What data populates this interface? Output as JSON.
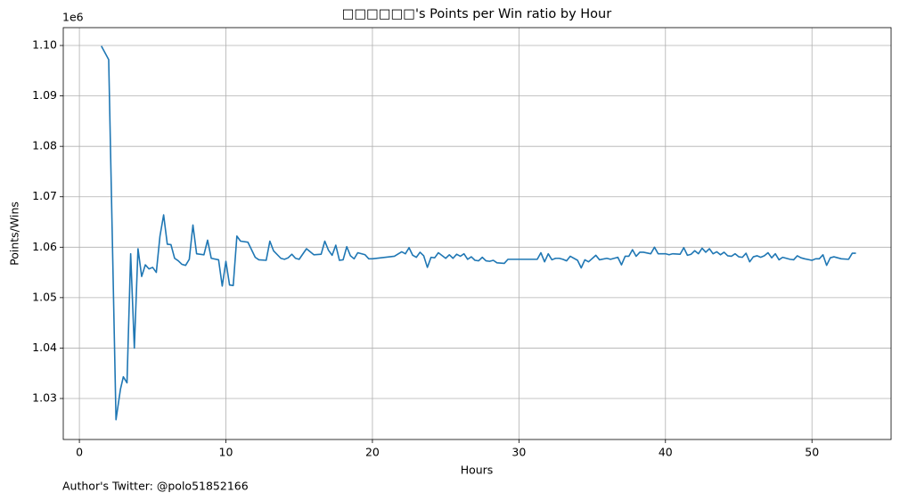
{
  "chart_data": {
    "type": "line",
    "title": "□□□□□□'s Points per Win ratio by Hour",
    "xlabel": "Hours",
    "ylabel": "Points/Wins",
    "y_offset_label": "1e6",
    "footnote": "Author's Twitter: @polo51852166",
    "grid": true,
    "color": "#1f77b4",
    "xlim": [
      -1.1,
      55.4
    ],
    "xticks": [
      0,
      10,
      20,
      30,
      40,
      50
    ],
    "ylim": [
      1021870,
      1103540
    ],
    "yticks": [
      {
        "value": 1030000,
        "label": "1.03"
      },
      {
        "value": 1040000,
        "label": "1.04"
      },
      {
        "value": 1050000,
        "label": "1.05"
      },
      {
        "value": 1060000,
        "label": "1.06"
      },
      {
        "value": 1070000,
        "label": "1.07"
      },
      {
        "value": 1080000,
        "label": "1.08"
      },
      {
        "value": 1090000,
        "label": "1.09"
      },
      {
        "value": 1100000,
        "label": "1.10"
      }
    ],
    "x": [
      1.5,
      2.0,
      2.5,
      2.8,
      3.0,
      3.25,
      3.5,
      3.75,
      4.0,
      4.25,
      4.5,
      4.75,
      5.0,
      5.25,
      5.5,
      5.75,
      6.0,
      6.25,
      6.5,
      6.75,
      7.0,
      7.25,
      7.5,
      7.75,
      8.0,
      8.5,
      8.75,
      9.0,
      9.5,
      9.75,
      10.0,
      10.25,
      10.5,
      10.75,
      11.0,
      11.5,
      12.0,
      12.25,
      12.75,
      13.0,
      13.25,
      13.75,
      14.0,
      14.25,
      14.5,
      14.75,
      15.0,
      15.5,
      16.0,
      16.5,
      16.75,
      17.0,
      17.25,
      17.5,
      17.75,
      18.0,
      18.25,
      18.5,
      18.75,
      19.0,
      19.5,
      19.75,
      20.0,
      21.5,
      22.0,
      22.25,
      22.5,
      22.75,
      23.0,
      23.25,
      23.5,
      23.75,
      24.0,
      24.25,
      24.5,
      25.0,
      25.25,
      25.5,
      25.75,
      26.0,
      26.25,
      26.5,
      26.75,
      27.0,
      27.25,
      27.5,
      27.75,
      28.0,
      28.25,
      28.5,
      29.0,
      29.25,
      31.25,
      31.5,
      31.75,
      32.0,
      32.25,
      32.5,
      32.75,
      33.0,
      33.25,
      33.5,
      34.0,
      34.25,
      34.5,
      34.75,
      35.25,
      35.5,
      36.0,
      36.25,
      36.75,
      37.0,
      37.25,
      37.5,
      37.75,
      38.0,
      38.25,
      38.5,
      39.0,
      39.25,
      39.5,
      40.0,
      40.25,
      40.5,
      41.0,
      41.25,
      41.5,
      41.75,
      42.0,
      42.25,
      42.5,
      42.75,
      43.0,
      43.25,
      43.5,
      43.75,
      44.0,
      44.25,
      44.5,
      44.75,
      45.0,
      45.25,
      45.5,
      45.75,
      46.0,
      46.25,
      46.5,
      46.75,
      47.0,
      47.25,
      47.5,
      47.75,
      48.0,
      48.5,
      48.75,
      49.0,
      49.25,
      49.5,
      50.0,
      50.25,
      50.5,
      50.75,
      51.0,
      51.25,
      51.5,
      52.0,
      52.5,
      52.75,
      53.0
    ],
    "values": [
      1099900,
      1097200,
      1025800,
      1031800,
      1034300,
      1033100,
      1058700,
      1040000,
      1059700,
      1054200,
      1056500,
      1055700,
      1056000,
      1055000,
      1062200,
      1066400,
      1060600,
      1060500,
      1057800,
      1057300,
      1056600,
      1056400,
      1057600,
      1064400,
      1058700,
      1058500,
      1061400,
      1057800,
      1057500,
      1052300,
      1057200,
      1052500,
      1052400,
      1062200,
      1061200,
      1061000,
      1058000,
      1057500,
      1057400,
      1061200,
      1059300,
      1057800,
      1057600,
      1057900,
      1058600,
      1057800,
      1057600,
      1059700,
      1058500,
      1058600,
      1061200,
      1059400,
      1058400,
      1060400,
      1057400,
      1057500,
      1060100,
      1058300,
      1057700,
      1058900,
      1058500,
      1057700,
      1057700,
      1058200,
      1059100,
      1058700,
      1059900,
      1058400,
      1058000,
      1059000,
      1058300,
      1056000,
      1058000,
      1057900,
      1058900,
      1057800,
      1058500,
      1057800,
      1058600,
      1058200,
      1058700,
      1057600,
      1058100,
      1057400,
      1057300,
      1058000,
      1057300,
      1057200,
      1057400,
      1056900,
      1056800,
      1057600,
      1057600,
      1058900,
      1057100,
      1058700,
      1057500,
      1057800,
      1057800,
      1057600,
      1057300,
      1058200,
      1057400,
      1055900,
      1057500,
      1057100,
      1058400,
      1057500,
      1057800,
      1057600,
      1058000,
      1056500,
      1058200,
      1058200,
      1059500,
      1058200,
      1059000,
      1059000,
      1058700,
      1060000,
      1058700,
      1058700,
      1058500,
      1058700,
      1058600,
      1059900,
      1058400,
      1058600,
      1059300,
      1058700,
      1059800,
      1059000,
      1059700,
      1058700,
      1059100,
      1058500,
      1059000,
      1058300,
      1058200,
      1058700,
      1058100,
      1058000,
      1058800,
      1057100,
      1058100,
      1058300,
      1058000,
      1058300,
      1058900,
      1057900,
      1058700,
      1057500,
      1058000,
      1057600,
      1057500,
      1058300,
      1057900,
      1057700,
      1057400,
      1057700,
      1057700,
      1058500,
      1056400,
      1057900,
      1058100,
      1057700,
      1057600,
      1058800,
      1058800
    ]
  }
}
